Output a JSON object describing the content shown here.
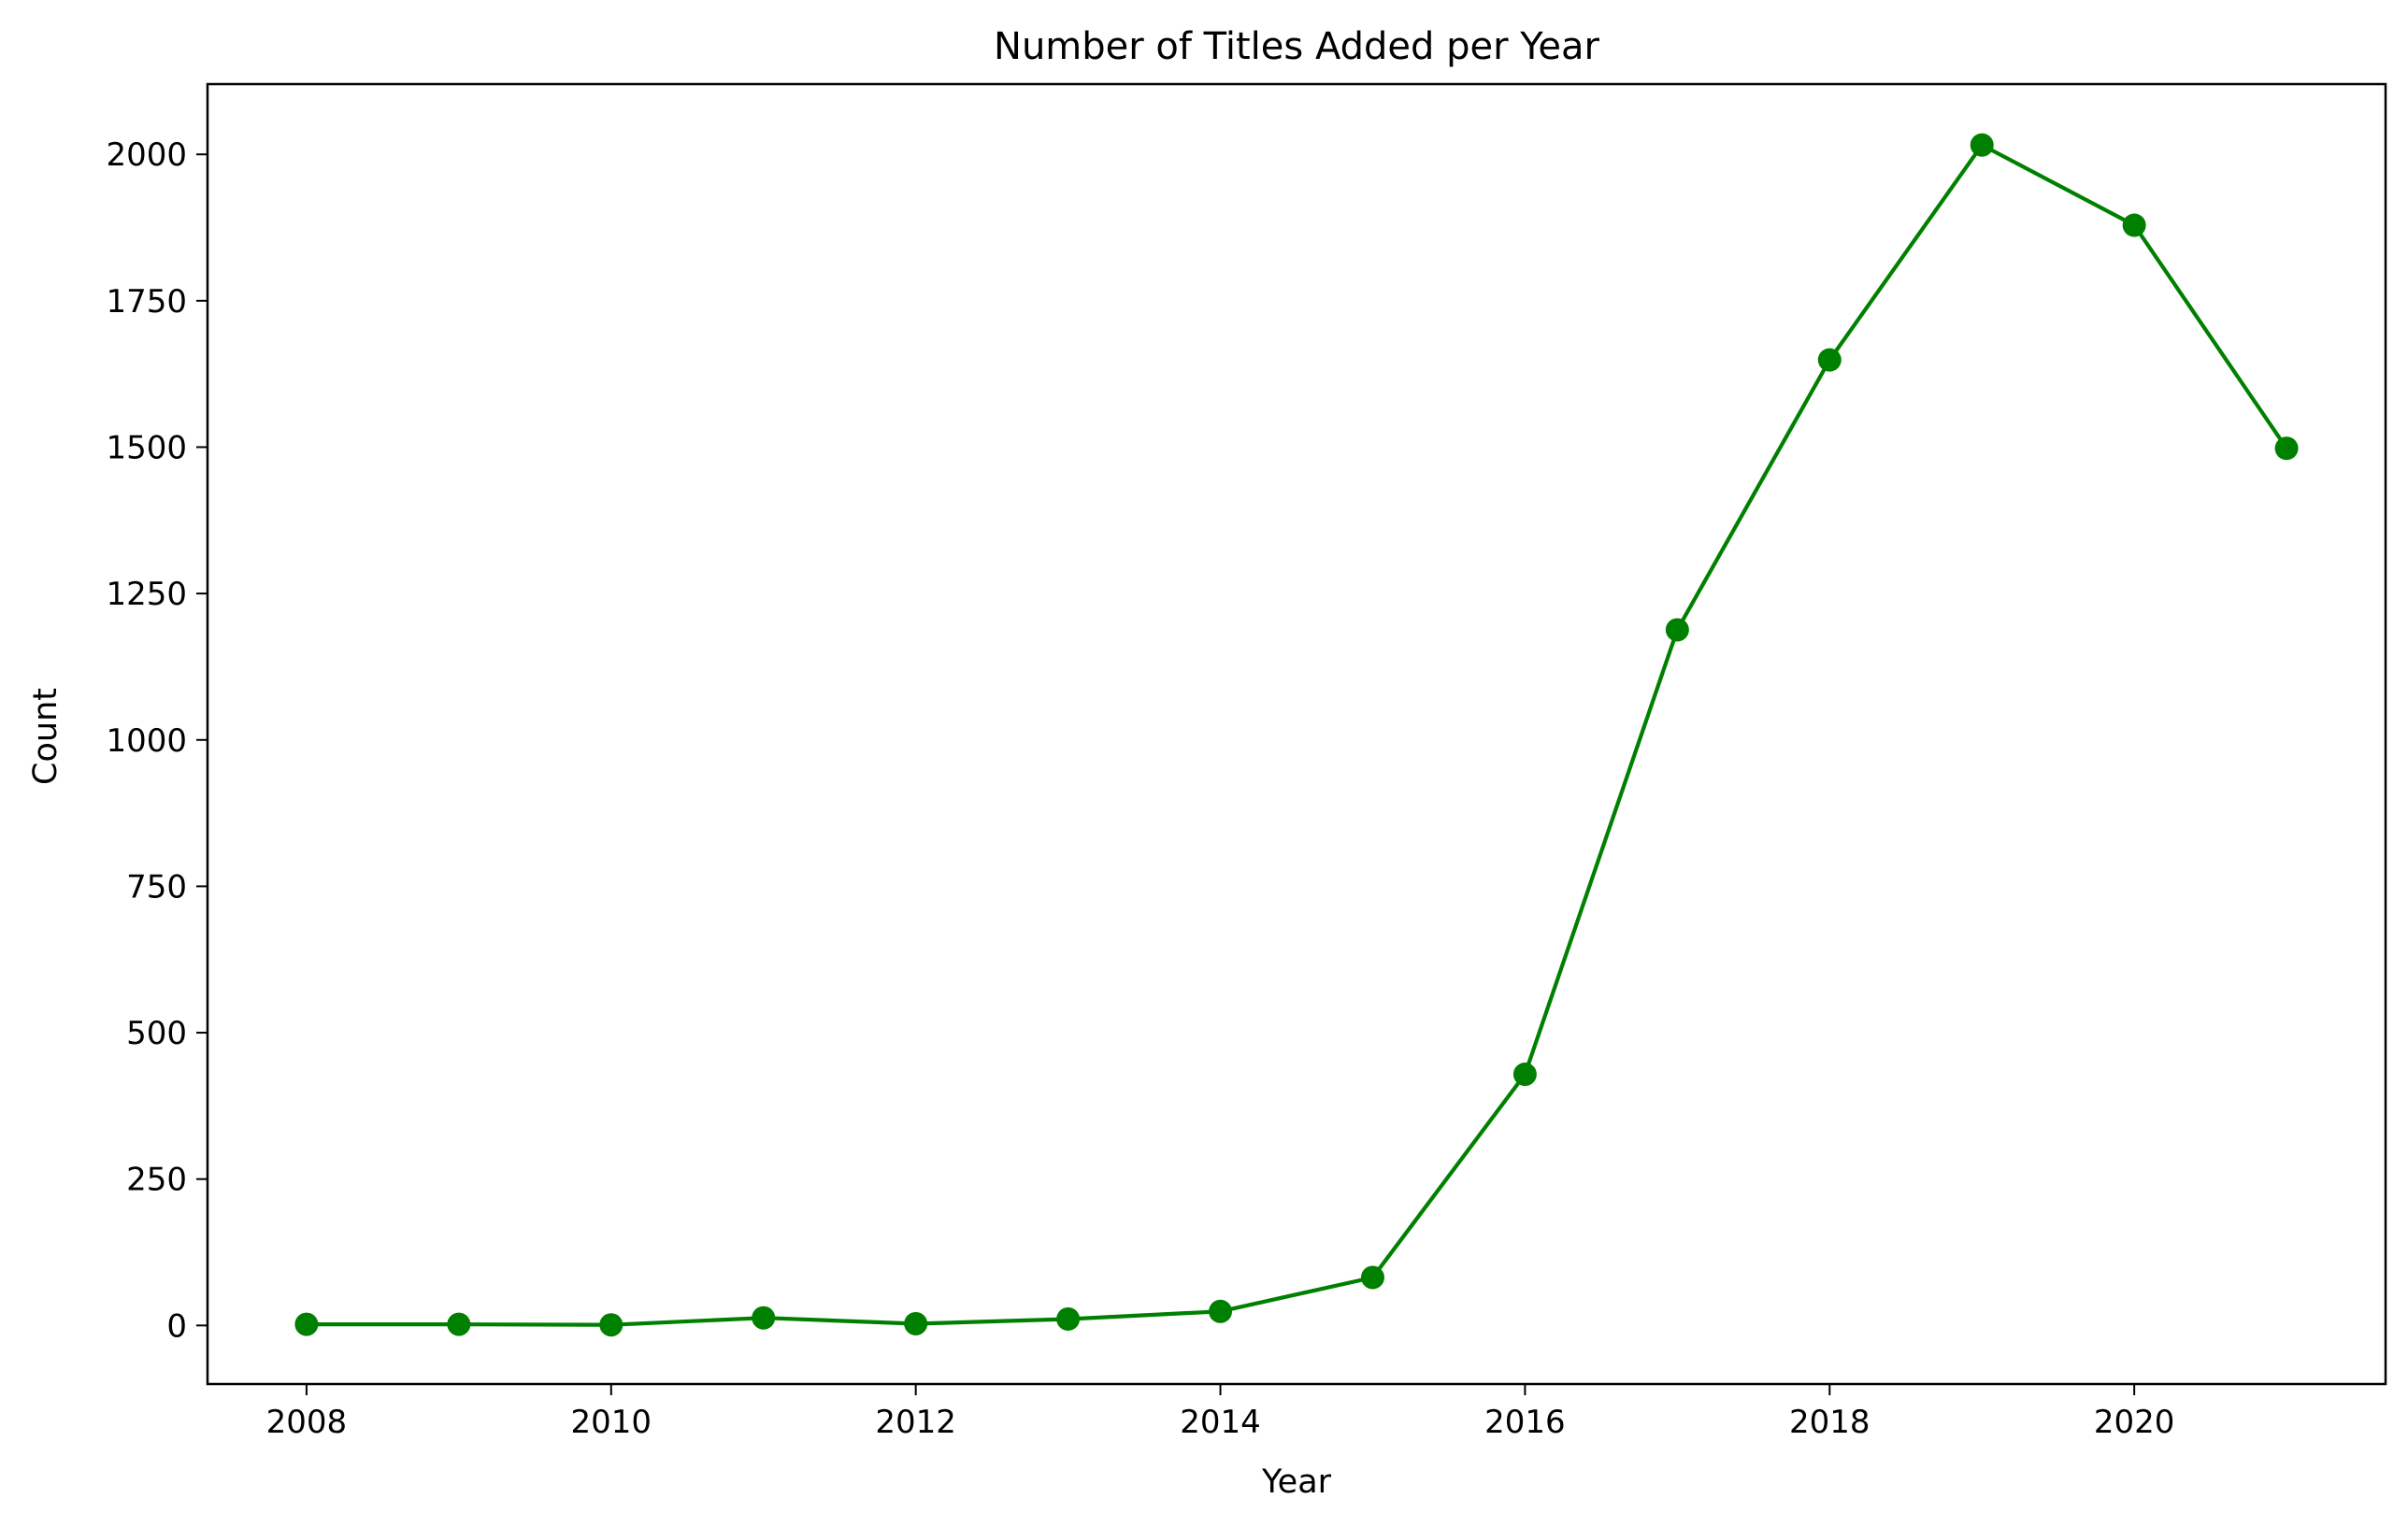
{
  "chart_data": {
    "type": "line",
    "title": "Number of Titles Added per Year",
    "xlabel": "Year",
    "ylabel": "Count",
    "xlim": [
      2007.35,
      2021.65
    ],
    "ylim": [
      -100,
      2120
    ],
    "xticks": [
      2008,
      2010,
      2012,
      2014,
      2016,
      2018,
      2020
    ],
    "yticks": [
      0,
      250,
      500,
      750,
      1000,
      1250,
      1500,
      1750,
      2000
    ],
    "grid": false,
    "series": [
      {
        "color": "#008000",
        "marker": "circle",
        "x": [
          2008,
          2009,
          2010,
          2011,
          2012,
          2013,
          2014,
          2015,
          2016,
          2017,
          2018,
          2019,
          2020,
          2021
        ],
        "y": [
          2,
          2,
          1,
          13,
          3,
          11,
          24,
          82,
          429,
          1188,
          1649,
          2016,
          1879,
          1498
        ]
      }
    ]
  }
}
